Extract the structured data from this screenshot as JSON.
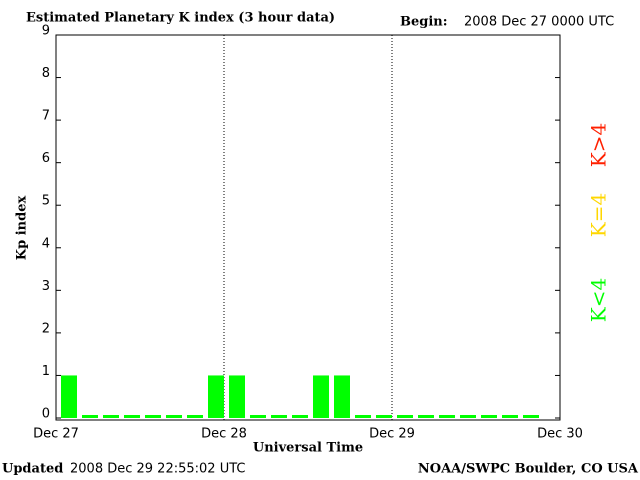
{
  "chart_data": {
    "type": "bar",
    "title": "Estimated Planetary K index (3 hour data)",
    "begin_label": "Begin:",
    "begin": "2008 Dec 27 0000 UTC",
    "ylabel": "Kp index",
    "xlabel": "Universal Time",
    "updated_label": "Updated",
    "updated": "2008 Dec 29 22:55:02 UTC",
    "source": "NOAA/SWPC Boulder, CO USA",
    "categories": [
      null,
      null,
      null,
      null,
      null,
      null,
      null,
      null,
      null,
      null,
      null,
      null,
      null,
      null,
      null,
      null,
      null,
      null,
      null,
      null,
      null,
      null,
      null,
      null
    ],
    "values": [
      1,
      0,
      0,
      0,
      0,
      0,
      0,
      1,
      1,
      0,
      0,
      0,
      1,
      1,
      0,
      0,
      0,
      0,
      0,
      0,
      0,
      0,
      0,
      null
    ],
    "color": "#00ff00",
    "ylim": [
      0,
      9
    ],
    "yticks": [
      0,
      1,
      2,
      3,
      4,
      5,
      6,
      7,
      8,
      9
    ],
    "xlim": [
      0,
      24
    ],
    "xticks": [
      {
        "value": 0,
        "label": "Dec 27"
      },
      {
        "value": 8,
        "label": "Dec 28"
      },
      {
        "value": 16,
        "label": "Dec 29"
      },
      {
        "value": 24,
        "label": "Dec 30"
      }
    ],
    "grid": true,
    "legend": [
      {
        "name": "K<4",
        "color": "#00ff00"
      },
      {
        "name": "K=4",
        "color": "#ffd700"
      },
      {
        "name": "K>4",
        "color": "#ff2000"
      }
    ]
  }
}
